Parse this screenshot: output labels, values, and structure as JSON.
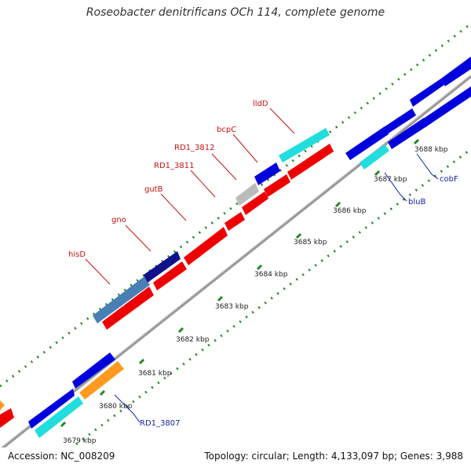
{
  "title": "Roseobacter denitrificans OCh 114, complete genome",
  "accession_text": "Accession: NC_008209",
  "genome_info_text": "Topology: circular; Length: 4,133,097 bp; Genes: 3,988",
  "colors": {
    "forward_cds": "#0000dd",
    "reverse_cds": "#ee0000",
    "rna": "#22dddd",
    "steelblue": "#4a7fb5",
    "gray": "#bbbbbb",
    "orange": "#ff9a1f",
    "navy": "#11118a",
    "backbone": "#888888",
    "ticks": "#228822"
  },
  "ruler": {
    "start_kbp": 3679,
    "end_kbp": 3688,
    "tick_labels": [
      "3679 kbp",
      "3680 kbp",
      "3681 kbp",
      "3682 kbp",
      "3683 kbp",
      "3684 kbp",
      "3685 kbp",
      "3686 kbp",
      "3687 kbp",
      "3688 kbp"
    ]
  },
  "gene_labels": [
    {
      "name": "hisD",
      "color": "red"
    },
    {
      "name": "gno",
      "color": "red"
    },
    {
      "name": "gutB",
      "color": "red"
    },
    {
      "name": "RD1_3811",
      "color": "red"
    },
    {
      "name": "RD1_3812",
      "color": "red"
    },
    {
      "name": "bcpC",
      "color": "red"
    },
    {
      "name": "lldD",
      "color": "red"
    },
    {
      "name": "RD1_3807",
      "color": "blue"
    },
    {
      "name": "bluB",
      "color": "blue"
    },
    {
      "name": "cobF",
      "color": "blue"
    }
  ]
}
